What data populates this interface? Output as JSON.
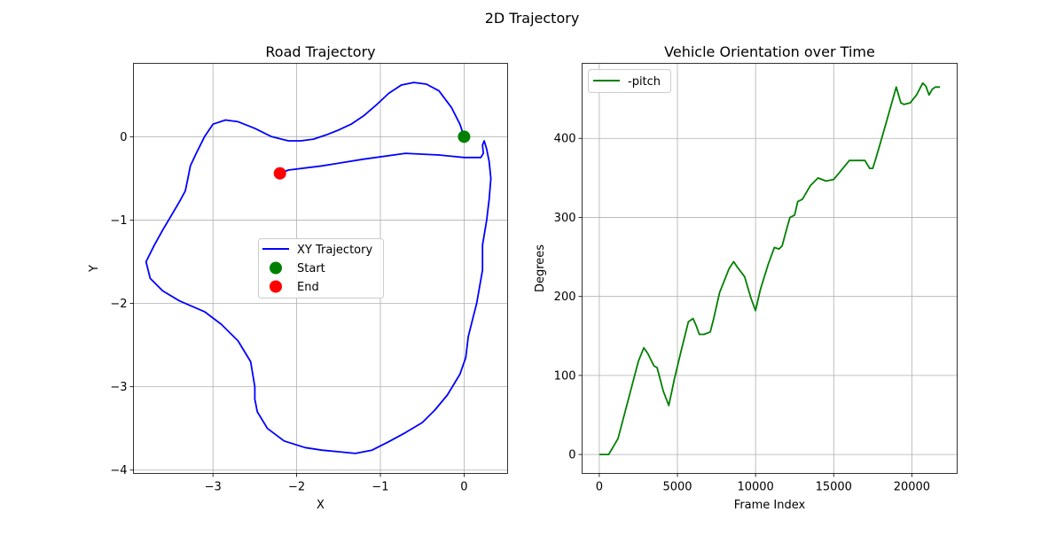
{
  "figure": {
    "suptitle": "2D Trajectory"
  },
  "chart_data": [
    {
      "type": "line",
      "title": "Road Trajectory",
      "xlabel": "X",
      "ylabel": "Y",
      "xlim": [
        -3.95,
        0.52
      ],
      "ylim": [
        -4.04,
        0.88
      ],
      "xticks": [
        -3,
        -2,
        -1,
        0
      ],
      "yticks": [
        -4,
        -3,
        -2,
        -1,
        0
      ],
      "xtick_labels": [
        "−3",
        "−2",
        "−1",
        "0"
      ],
      "ytick_labels": [
        "−4",
        "−3",
        "−2",
        "−1",
        "0"
      ],
      "grid": true,
      "legend": {
        "placement": "center",
        "entries": [
          "XY Trajectory",
          "Start",
          "End"
        ]
      },
      "series": [
        {
          "name": "XY Trajectory",
          "color": "#0000ff",
          "x": [
            0.0,
            -0.05,
            -0.15,
            -0.3,
            -0.45,
            -0.6,
            -0.75,
            -0.9,
            -1.05,
            -1.2,
            -1.35,
            -1.5,
            -1.65,
            -1.8,
            -1.95,
            -2.1,
            -2.3,
            -2.5,
            -2.7,
            -2.85,
            -3.0,
            -3.1,
            -3.2,
            -3.27,
            -3.3,
            -3.33,
            -3.4,
            -3.5,
            -3.6,
            -3.7,
            -3.8,
            -3.75,
            -3.6,
            -3.4,
            -3.1,
            -2.9,
            -2.7,
            -2.55,
            -2.5,
            -2.5,
            -2.47,
            -2.35,
            -2.15,
            -1.9,
            -1.7,
            -1.5,
            -1.3,
            -1.1,
            -0.9,
            -0.7,
            -0.5,
            -0.35,
            -0.2,
            -0.05,
            0.02,
            0.05,
            0.1,
            0.15,
            0.22,
            0.22,
            0.27,
            0.3,
            0.32,
            0.3,
            0.27,
            0.24,
            0.22,
            0.23,
            0.2,
            0.0,
            -0.3,
            -0.7,
            -1.2,
            -1.7,
            -2.1,
            -2.2
          ],
          "y": [
            0.0,
            0.15,
            0.35,
            0.55,
            0.63,
            0.65,
            0.62,
            0.52,
            0.38,
            0.25,
            0.15,
            0.08,
            0.02,
            -0.03,
            -0.05,
            -0.05,
            0.0,
            0.1,
            0.18,
            0.2,
            0.15,
            0.0,
            -0.2,
            -0.35,
            -0.5,
            -0.65,
            -0.78,
            -0.95,
            -1.12,
            -1.3,
            -1.5,
            -1.7,
            -1.85,
            -1.97,
            -2.1,
            -2.25,
            -2.45,
            -2.7,
            -3.0,
            -3.15,
            -3.3,
            -3.5,
            -3.65,
            -3.73,
            -3.76,
            -3.78,
            -3.8,
            -3.76,
            -3.66,
            -3.55,
            -3.43,
            -3.28,
            -3.1,
            -2.85,
            -2.65,
            -2.4,
            -2.2,
            -2.0,
            -1.6,
            -1.3,
            -1.0,
            -0.75,
            -0.5,
            -0.3,
            -0.15,
            -0.05,
            -0.1,
            -0.2,
            -0.25,
            -0.25,
            -0.22,
            -0.2,
            -0.27,
            -0.35,
            -0.4,
            -0.44
          ]
        },
        {
          "name": "Start",
          "type": "scatter",
          "color": "#008000",
          "x": [
            0.0
          ],
          "y": [
            0.0
          ]
        },
        {
          "name": "End",
          "type": "scatter",
          "color": "#ff0000",
          "x": [
            -2.2
          ],
          "y": [
            -0.44
          ]
        }
      ]
    },
    {
      "type": "line",
      "title": "Vehicle Orientation over Time",
      "xlabel": "Frame Index",
      "ylabel": "Degrees",
      "xlim": [
        -1100,
        22900
      ],
      "ylim": [
        -24,
        495
      ],
      "xticks": [
        0,
        5000,
        10000,
        15000,
        20000
      ],
      "yticks": [
        0,
        100,
        200,
        300,
        400
      ],
      "xtick_labels": [
        "0",
        "5000",
        "10000",
        "15000",
        "20000"
      ],
      "ytick_labels": [
        "0",
        "100",
        "200",
        "300",
        "400"
      ],
      "grid": true,
      "legend": {
        "placement": "top-left",
        "entries": [
          "-pitch"
        ]
      },
      "series": [
        {
          "name": "-pitch",
          "color": "#008000",
          "x": [
            0,
            600,
            1200,
            2000,
            2500,
            2850,
            3100,
            3500,
            3700,
            4100,
            4450,
            4800,
            5200,
            5700,
            6000,
            6200,
            6400,
            6700,
            7100,
            7300,
            7700,
            8300,
            8600,
            8800,
            9300,
            9700,
            10000,
            10300,
            10800,
            11200,
            11500,
            11700,
            12000,
            12200,
            12500,
            12700,
            13000,
            13500,
            14000,
            14500,
            15000,
            15500,
            16000,
            16500,
            17000,
            17300,
            17500,
            17700,
            18000,
            18500,
            19000,
            19300,
            19500,
            19900,
            20300,
            20700,
            20900,
            21100,
            21300,
            21500,
            21800
          ],
          "y": [
            0,
            0,
            20,
            80,
            118,
            135,
            128,
            112,
            110,
            80,
            62,
            95,
            128,
            168,
            172,
            163,
            152,
            152,
            155,
            170,
            205,
            235,
            244,
            238,
            225,
            198,
            182,
            208,
            240,
            262,
            260,
            264,
            286,
            300,
            303,
            320,
            323,
            340,
            350,
            346,
            348,
            360,
            372,
            372,
            372,
            362,
            362,
            375,
            395,
            430,
            465,
            445,
            443,
            445,
            455,
            470,
            466,
            455,
            462,
            465,
            465
          ]
        }
      ]
    }
  ]
}
